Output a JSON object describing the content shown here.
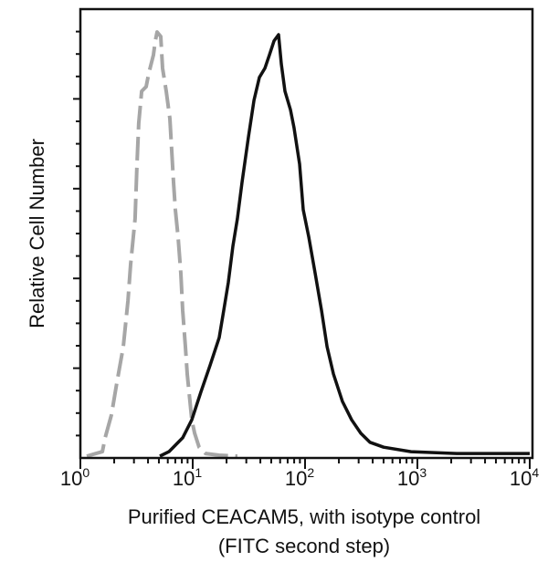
{
  "chart_data": {
    "type": "line",
    "title": "",
    "xlabel": "Purified CEACAM5, with isotype control",
    "xlabel_line2": "(FITC second step)",
    "ylabel": "Relative Cell Number",
    "xscale": "log",
    "xlim": [
      1,
      10000
    ],
    "ylim": [
      0,
      100
    ],
    "x_ticks": [
      {
        "base": "10",
        "exp": "0",
        "value": 1
      },
      {
        "base": "10",
        "exp": "1",
        "value": 10
      },
      {
        "base": "10",
        "exp": "2",
        "value": 100
      },
      {
        "base": "10",
        "exp": "3",
        "value": 1000
      },
      {
        "base": "10",
        "exp": "4",
        "value": 10000
      }
    ],
    "y_major_ticks": [
      20,
      40,
      60,
      80
    ],
    "grid": false,
    "series": [
      {
        "name": "isotype control",
        "style": "dashed",
        "color": "#a6a6a6",
        "x": [
          1.14,
          1.57,
          1.66,
          1.89,
          2.11,
          2.41,
          2.65,
          2.8,
          3.07,
          3.19,
          3.31,
          3.51,
          3.85,
          4.07,
          4.47,
          4.64,
          4.82,
          5.19,
          5.39,
          5.81,
          6.26,
          6.5,
          6.75,
          7.01,
          7.41,
          7.84,
          8.14,
          8.61,
          8.94,
          9.46,
          9.81,
          10.4,
          11.4,
          13.0,
          17.2,
          25.0
        ],
        "y": [
          0.4,
          1.4,
          4.5,
          9.6,
          16.7,
          24.8,
          35.0,
          43.1,
          53.3,
          65.5,
          74.6,
          81.7,
          82.7,
          85.8,
          89.8,
          92.9,
          94.9,
          93.9,
          86.8,
          81.7,
          75.6,
          68.5,
          61.4,
          55.3,
          49.2,
          41.1,
          32.9,
          24.8,
          18.7,
          12.6,
          8.5,
          5.5,
          2.4,
          1.0,
          0.6,
          0.4
        ]
      },
      {
        "name": "Purified CEACAM5",
        "style": "solid",
        "color": "#111111",
        "x": [
          5.1,
          6.15,
          8.14,
          9.81,
          11.8,
          14.3,
          17.2,
          18.9,
          20.7,
          22.8,
          25.0,
          27.5,
          31.3,
          35.1,
          39.2,
          43.9,
          48.2,
          52.9,
          58.1,
          61.5,
          66.3,
          74.1,
          79.8,
          89.4,
          96.3,
          108,
          123,
          140,
          157,
          179,
          215,
          260,
          313,
          378,
          500,
          877,
          2238,
          6871,
          10000
        ],
        "y": [
          0.4,
          1.4,
          4.5,
          8.5,
          14.6,
          20.7,
          26.8,
          32.9,
          39.0,
          47.2,
          53.3,
          61.4,
          71.5,
          79.7,
          84.8,
          86.8,
          89.8,
          92.9,
          94.3,
          87.8,
          81.7,
          77.6,
          73.6,
          65.5,
          55.3,
          49.2,
          41.1,
          32.9,
          24.8,
          18.7,
          12.6,
          8.5,
          5.5,
          3.5,
          2.4,
          1.4,
          1.0,
          1.0,
          1.0
        ]
      }
    ]
  }
}
